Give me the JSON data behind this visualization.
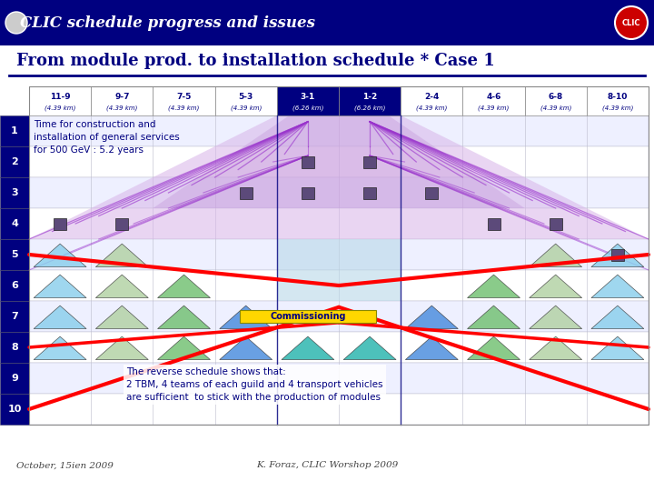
{
  "title_bar": "CLIC schedule progress and issues",
  "subtitle": "From module prod. to installation schedule * Case 1",
  "header_bg": "#000080",
  "title_color": "#FFFFFF",
  "subtitle_color": "#000080",
  "columns": [
    "11-9",
    "9-7",
    "7-5",
    "5-3",
    "3-1",
    "1-2",
    "2-4",
    "4-6",
    "6-8",
    "8-10"
  ],
  "col_km": [
    "(4.39 km)",
    "(4.39 km)",
    "(4.39 km)",
    "(4.39 km)",
    "(6.26 km)",
    "(6.26 km)",
    "(4.39 km)",
    "(4.39 km)",
    "(4.39 km)",
    "(4.39 km)"
  ],
  "col_highlight": [
    4,
    5
  ],
  "rows": 10,
  "row_label_bg": "#000080",
  "row_label_color": "#FFFFFF",
  "annotation1_text": "Time for construction and\ninstallation of general services\nfor 500 GeV : 5.2 years",
  "commissioning_text": "Commissioning",
  "commissioning_color": "#FFD700",
  "reverse_text": "The reverse schedule shows that:\n2 TBM, 4 teams of each guild and 4 transport vehicles\nare sufficient  to stick with the production of modules",
  "footer_left": "October, 15ien 2009",
  "footer_right": "K. Foraz, CLIC Worshop 2009",
  "purple_line": "#9932CC",
  "light_purple_fill": "#D8B4E8",
  "red_line": "#FF0000",
  "dark_purple_rect": "#5C4A7A",
  "row_bg_even": "#EEF0FF",
  "row_bg_odd": "#FFFFFF",
  "grid_line": "#BBBBCC"
}
